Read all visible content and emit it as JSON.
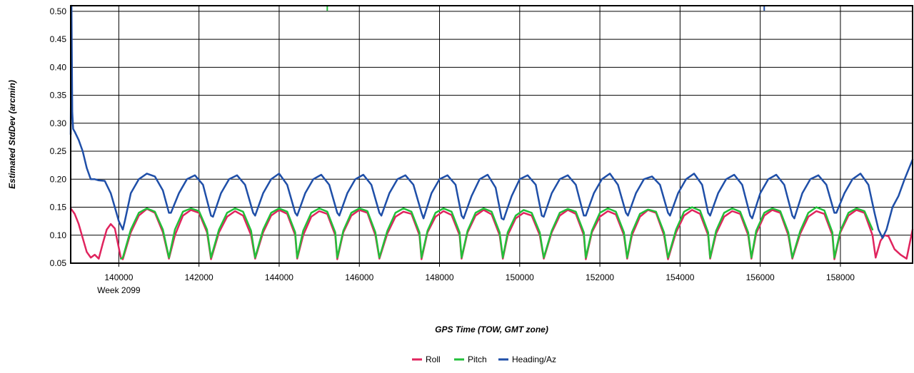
{
  "chart_data": {
    "type": "line",
    "xlabel": "GPS Time (TOW, GMT zone)",
    "ylabel": "Estimated StdDev (arcmin)",
    "week_label": "Week 2099",
    "xlim": [
      138800,
      159800
    ],
    "ylim": [
      0.05,
      0.51
    ],
    "x_ticks": [
      140000,
      142000,
      144000,
      146000,
      148000,
      150000,
      152000,
      154000,
      156000,
      158000
    ],
    "y_ticks": [
      "0.05",
      "0.10",
      "0.15",
      "0.20",
      "0.25",
      "0.30",
      "0.35",
      "0.40",
      "0.45",
      "0.50"
    ],
    "grid": true,
    "legend_position": "bottom-center",
    "series": [
      {
        "name": "Roll",
        "color": "#e0245e",
        "x": [
          138800,
          138900,
          139000,
          139100,
          139200,
          139300,
          139400,
          139500,
          139600,
          139700,
          139800,
          139900,
          140050,
          140100,
          140300,
          140500,
          140700,
          140900,
          141100,
          141250,
          141400,
          141600,
          141800,
          142000,
          142200,
          142300,
          142500,
          142700,
          142900,
          143100,
          143300,
          143400,
          143600,
          143800,
          144000,
          144200,
          144400,
          144450,
          144600,
          144800,
          145000,
          145200,
          145400,
          145450,
          145600,
          145800,
          146000,
          146200,
          146400,
          146500,
          146700,
          146900,
          147100,
          147300,
          147500,
          147550,
          147700,
          147900,
          148100,
          148300,
          148500,
          148550,
          148700,
          148900,
          149100,
          149300,
          149500,
          149580,
          149700,
          149900,
          150100,
          150300,
          150500,
          150600,
          150800,
          151000,
          151200,
          151400,
          151600,
          151650,
          151800,
          152000,
          152200,
          152400,
          152600,
          152680,
          152800,
          153000,
          153200,
          153400,
          153600,
          153700,
          153900,
          154100,
          154300,
          154500,
          154700,
          154750,
          154900,
          155100,
          155300,
          155500,
          155700,
          155780,
          155900,
          156100,
          156300,
          156500,
          156700,
          156800,
          157000,
          157200,
          157400,
          157600,
          157800,
          157850,
          158000,
          158200,
          158400,
          158600,
          158800,
          158880,
          159000,
          159100,
          159200,
          159350,
          159500,
          159650,
          159800
        ],
        "y": [
          0.148,
          0.138,
          0.12,
          0.095,
          0.07,
          0.06,
          0.065,
          0.058,
          0.085,
          0.11,
          0.12,
          0.112,
          0.06,
          0.057,
          0.105,
          0.135,
          0.147,
          0.14,
          0.105,
          0.058,
          0.1,
          0.135,
          0.145,
          0.14,
          0.105,
          0.057,
          0.105,
          0.133,
          0.143,
          0.135,
          0.1,
          0.058,
          0.105,
          0.135,
          0.145,
          0.138,
          0.1,
          0.058,
          0.1,
          0.133,
          0.143,
          0.138,
          0.1,
          0.057,
          0.105,
          0.135,
          0.145,
          0.14,
          0.1,
          0.058,
          0.103,
          0.133,
          0.142,
          0.138,
          0.1,
          0.057,
          0.105,
          0.133,
          0.143,
          0.136,
          0.1,
          0.058,
          0.105,
          0.135,
          0.145,
          0.137,
          0.1,
          0.058,
          0.1,
          0.13,
          0.14,
          0.135,
          0.1,
          0.058,
          0.105,
          0.135,
          0.145,
          0.138,
          0.1,
          0.057,
          0.105,
          0.133,
          0.143,
          0.137,
          0.1,
          0.058,
          0.1,
          0.133,
          0.145,
          0.14,
          0.1,
          0.057,
          0.105,
          0.135,
          0.145,
          0.138,
          0.1,
          0.058,
          0.103,
          0.133,
          0.143,
          0.138,
          0.1,
          0.058,
          0.103,
          0.135,
          0.145,
          0.14,
          0.1,
          0.058,
          0.103,
          0.133,
          0.143,
          0.138,
          0.1,
          0.057,
          0.105,
          0.135,
          0.145,
          0.14,
          0.1,
          0.06,
          0.09,
          0.1,
          0.098,
          0.075,
          0.065,
          0.058,
          0.11
        ]
      },
      {
        "name": "Pitch",
        "color": "#22c03a",
        "x": [
          140050,
          140100,
          140300,
          140500,
          140700,
          140900,
          141100,
          141250,
          141400,
          141600,
          141800,
          142000,
          142200,
          142300,
          142500,
          142700,
          142900,
          143100,
          143300,
          143400,
          143600,
          143800,
          144000,
          144200,
          144400,
          144450,
          144600,
          144800,
          145000,
          145200,
          145400,
          145450,
          145600,
          145800,
          146000,
          146200,
          146400,
          146500,
          146700,
          146900,
          147100,
          147300,
          147500,
          147550,
          147700,
          147900,
          148100,
          148300,
          148500,
          148550,
          148700,
          148900,
          149100,
          149300,
          149500,
          149580,
          149700,
          149900,
          150100,
          150300,
          150500,
          150600,
          150800,
          151000,
          151200,
          151400,
          151600,
          151650,
          151800,
          152000,
          152200,
          152400,
          152600,
          152680,
          152800,
          153000,
          153200,
          153400,
          153600,
          153700,
          153900,
          154100,
          154300,
          154500,
          154700,
          154750,
          154900,
          155100,
          155300,
          155500,
          155700,
          155780,
          155900,
          156100,
          156300,
          156500,
          156700,
          156800,
          157000,
          157200,
          157400,
          157600,
          157800,
          157850,
          158000,
          158200,
          158400,
          158600,
          158800
        ],
        "y": [
          0.058,
          0.06,
          0.11,
          0.14,
          0.148,
          0.142,
          0.11,
          0.06,
          0.11,
          0.142,
          0.148,
          0.143,
          0.11,
          0.06,
          0.11,
          0.14,
          0.148,
          0.142,
          0.108,
          0.06,
          0.11,
          0.14,
          0.148,
          0.142,
          0.105,
          0.06,
          0.108,
          0.14,
          0.148,
          0.142,
          0.105,
          0.06,
          0.108,
          0.14,
          0.148,
          0.143,
          0.105,
          0.06,
          0.108,
          0.14,
          0.148,
          0.142,
          0.105,
          0.06,
          0.108,
          0.14,
          0.148,
          0.142,
          0.105,
          0.06,
          0.108,
          0.14,
          0.148,
          0.142,
          0.105,
          0.06,
          0.105,
          0.135,
          0.145,
          0.14,
          0.105,
          0.06,
          0.108,
          0.14,
          0.147,
          0.142,
          0.105,
          0.06,
          0.108,
          0.14,
          0.148,
          0.142,
          0.105,
          0.06,
          0.105,
          0.138,
          0.146,
          0.142,
          0.105,
          0.06,
          0.11,
          0.142,
          0.15,
          0.144,
          0.105,
          0.06,
          0.108,
          0.14,
          0.148,
          0.142,
          0.105,
          0.06,
          0.108,
          0.14,
          0.148,
          0.143,
          0.105,
          0.06,
          0.108,
          0.14,
          0.15,
          0.144,
          0.105,
          0.06,
          0.108,
          0.14,
          0.148,
          0.143,
          0.11
        ]
      },
      {
        "name": "Heading/Az",
        "color": "#1f4fa8",
        "x": [
          138800,
          138820,
          138840,
          138860,
          138900,
          139000,
          139100,
          139200,
          139300,
          139400,
          139500,
          139650,
          139800,
          139900,
          140000,
          140100,
          140150,
          140300,
          140500,
          140700,
          140900,
          141100,
          141250,
          141300,
          141500,
          141700,
          141900,
          142100,
          142300,
          142350,
          142550,
          142750,
          142950,
          143150,
          143350,
          143400,
          143600,
          143800,
          144000,
          144200,
          144400,
          144450,
          144650,
          144850,
          145050,
          145250,
          145450,
          145500,
          145700,
          145900,
          146100,
          146300,
          146500,
          146550,
          146750,
          146950,
          147150,
          147350,
          147550,
          147600,
          147800,
          148000,
          148200,
          148400,
          148550,
          148600,
          148800,
          149000,
          149200,
          149400,
          149550,
          149600,
          149800,
          150000,
          150200,
          150400,
          150550,
          150600,
          150800,
          151000,
          151200,
          151400,
          151600,
          151650,
          151850,
          152050,
          152250,
          152450,
          152650,
          152700,
          152900,
          153100,
          153300,
          153500,
          153700,
          153750,
          153950,
          154150,
          154350,
          154550,
          154700,
          154750,
          154950,
          155150,
          155350,
          155550,
          155750,
          155800,
          156000,
          156200,
          156400,
          156600,
          156800,
          156850,
          157050,
          157250,
          157450,
          157650,
          157850,
          157900,
          158100,
          158300,
          158500,
          158700,
          158850,
          158950,
          159050,
          159150,
          159300,
          159450,
          159600,
          159800
        ],
        "y": [
          0.28,
          0.51,
          0.32,
          0.29,
          0.285,
          0.27,
          0.25,
          0.22,
          0.2,
          0.2,
          0.198,
          0.197,
          0.175,
          0.15,
          0.125,
          0.11,
          0.125,
          0.175,
          0.2,
          0.21,
          0.205,
          0.18,
          0.14,
          0.14,
          0.175,
          0.2,
          0.207,
          0.19,
          0.135,
          0.133,
          0.175,
          0.2,
          0.207,
          0.19,
          0.14,
          0.135,
          0.175,
          0.2,
          0.21,
          0.19,
          0.14,
          0.135,
          0.175,
          0.2,
          0.208,
          0.19,
          0.14,
          0.135,
          0.175,
          0.2,
          0.208,
          0.19,
          0.14,
          0.135,
          0.175,
          0.2,
          0.207,
          0.19,
          0.14,
          0.13,
          0.175,
          0.2,
          0.207,
          0.19,
          0.135,
          0.13,
          0.17,
          0.2,
          0.208,
          0.185,
          0.13,
          0.128,
          0.17,
          0.2,
          0.207,
          0.19,
          0.135,
          0.133,
          0.175,
          0.2,
          0.207,
          0.19,
          0.135,
          0.135,
          0.175,
          0.2,
          0.21,
          0.19,
          0.14,
          0.135,
          0.175,
          0.2,
          0.205,
          0.19,
          0.14,
          0.135,
          0.175,
          0.2,
          0.21,
          0.19,
          0.14,
          0.135,
          0.175,
          0.2,
          0.208,
          0.19,
          0.135,
          0.13,
          0.175,
          0.2,
          0.208,
          0.19,
          0.135,
          0.13,
          0.175,
          0.2,
          0.207,
          0.19,
          0.14,
          0.14,
          0.175,
          0.2,
          0.21,
          0.19,
          0.14,
          0.11,
          0.095,
          0.11,
          0.15,
          0.17,
          0.2,
          0.235
        ]
      }
    ],
    "top_markers": [
      {
        "x": 145200,
        "color": "#22c03a"
      },
      {
        "x": 156100,
        "color": "#1f4fa8"
      }
    ]
  }
}
